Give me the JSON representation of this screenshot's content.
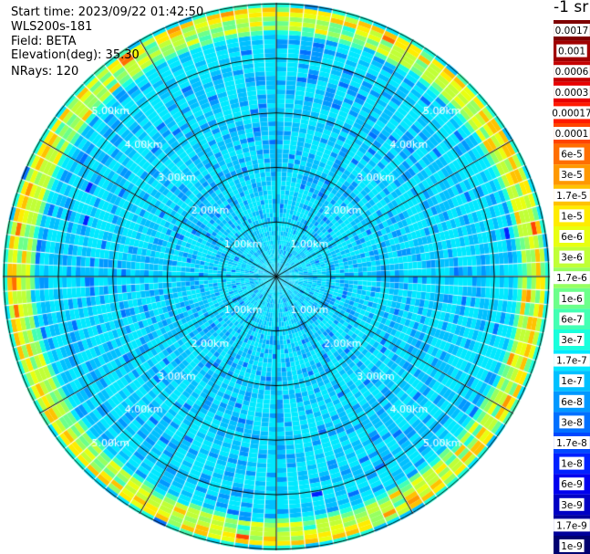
{
  "header": {
    "start_time": "Start time: 2023/09/22 01:42:50",
    "instrument": "WLS200s-181",
    "field": "Field: BETA",
    "elevation": "Elevation(deg): 35.30",
    "nrays": "NRays: 120"
  },
  "colorbar": {
    "unit_label": "-1 sr",
    "labels": [
      "0.0017",
      "0.001",
      "0.0006",
      "0.0003",
      "0.00017",
      "0.0001",
      "6e-5",
      "3e-5",
      "1.7e-5",
      "1e-5",
      "6e-6",
      "3e-6",
      "1.7e-6",
      "1e-6",
      "6e-7",
      "3e-7",
      "1.7e-7",
      "1e-7",
      "6e-8",
      "3e-8",
      "1.7e-8",
      "1e-8",
      "6e-9",
      "3e-9",
      "1.7e-9",
      "1e-9"
    ],
    "colors": [
      "#7f0000",
      "#a00000",
      "#c40000",
      "#e80000",
      "#ff1a00",
      "#ff4400",
      "#ff6e00",
      "#ff9800",
      "#ffc200",
      "#ffec00",
      "#e8ff10",
      "#c0ff36",
      "#96ff60",
      "#6cff8a",
      "#43ffb3",
      "#1affdc",
      "#00e8ff",
      "#00c0ff",
      "#0098ff",
      "#0070ff",
      "#0048ff",
      "#0020ff",
      "#0000ee",
      "#0000c4",
      "#00009a",
      "#000070"
    ]
  },
  "chart_data": {
    "type": "heatmap",
    "projection": "polar PPI",
    "field": "BETA",
    "n_rays": 120,
    "range_rings_km": [
      1.0,
      2.0,
      3.0,
      4.0,
      5.0
    ],
    "ring_labels": [
      "1.00km",
      "2.00km",
      "3.00km",
      "4.00km",
      "5.00km"
    ],
    "spokes": 12,
    "colorscale": "log",
    "value_range": [
      1e-09,
      0.0017
    ],
    "typical_values": {
      "0-1km": "1.7e-7",
      "1-4.5km": "1e-7 to 3e-7",
      "4.5-5km": "3e-6 to 3e-5",
      "outer_edge": "1e-7 to 6e-7"
    }
  }
}
